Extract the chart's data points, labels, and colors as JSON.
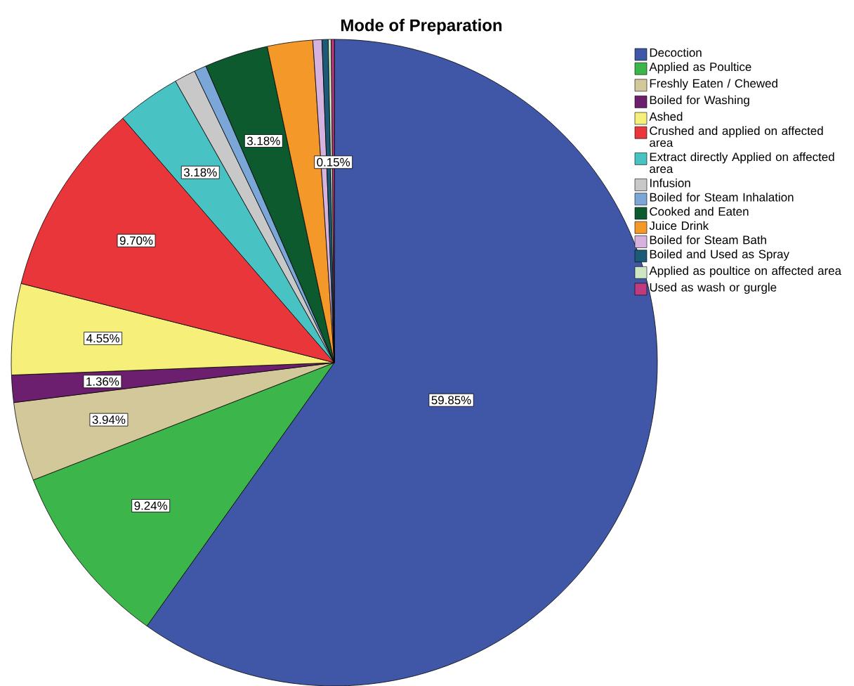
{
  "chart_data": {
    "type": "pie",
    "title": "Mode of Preparation",
    "categories": [
      "Decoction",
      "Applied as Poultice",
      "Freshly Eaten / Chewed",
      "Boiled for Washing",
      "Ashed",
      "Crushed and applied on affected area",
      "Extract directly Applied on affected area",
      "Infusion",
      "Boiled for Steam Inhalation",
      "Cooked and Eaten",
      "Juice Drink",
      "Boiled for Steam Bath",
      "Boiled and Used as Spray",
      "Applied as poultice on affected area",
      "Used as wash or gurgle"
    ],
    "values": [
      59.85,
      9.24,
      3.94,
      1.36,
      4.55,
      9.7,
      3.18,
      1.06,
      0.61,
      3.18,
      2.27,
      0.45,
      0.31,
      0.15,
      0.15
    ],
    "value_labels": [
      "59.85%",
      "9.24%",
      "3.94%",
      "1.36%",
      "4.55%",
      "9.70%",
      "3.18%",
      null,
      null,
      "3.18%",
      null,
      null,
      null,
      null,
      "0.15%"
    ],
    "colors": [
      "#3f57a6",
      "#3cb54a",
      "#d2c89a",
      "#6b1f6e",
      "#f6f07a",
      "#e8363a",
      "#49c2c4",
      "#c8c8c8",
      "#7aa6d8",
      "#0d5a2f",
      "#f4982a",
      "#d5b3de",
      "#1d5a78",
      "#cde7c4",
      "#c03a80"
    ],
    "legend": "top right"
  }
}
